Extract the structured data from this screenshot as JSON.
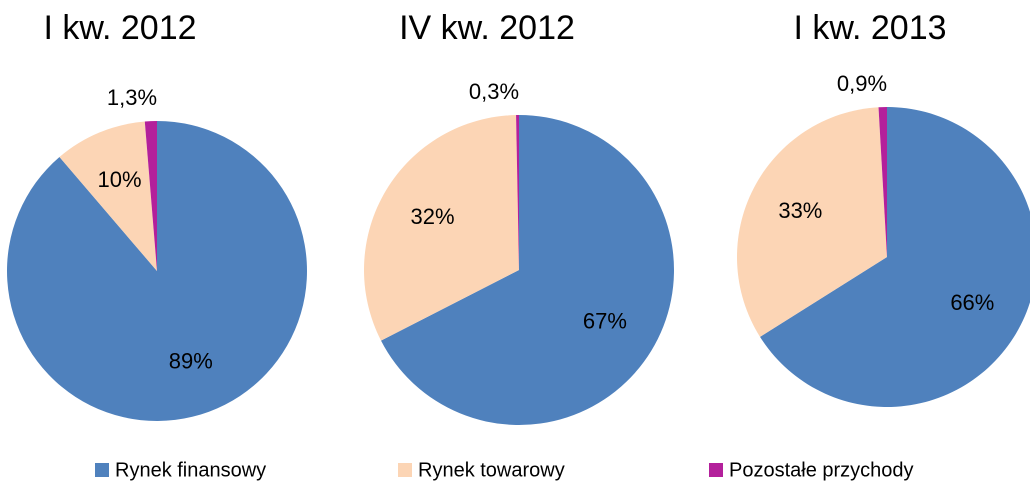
{
  "chart_data": [
    {
      "type": "pie",
      "title": "I kw. 2012",
      "values": [
        89,
        10,
        1.3
      ],
      "value_labels": [
        "89%",
        "10%",
        "1,3%"
      ]
    },
    {
      "type": "pie",
      "title": "IV kw. 2012",
      "values": [
        67,
        32,
        0.3
      ],
      "value_labels": [
        "67%",
        "32%",
        "0,3%"
      ]
    },
    {
      "type": "pie",
      "title": "I kw. 2013",
      "values": [
        66,
        33,
        0.9
      ],
      "value_labels": [
        "66%",
        "33%",
        "0,9%"
      ]
    }
  ],
  "legend": {
    "labels": [
      "Rynek finansowy",
      "Rynek towarowy",
      "Pozostałe przychody"
    ],
    "colors": [
      "#4f81bd",
      "#fcd5b5",
      "#b3209b"
    ]
  }
}
